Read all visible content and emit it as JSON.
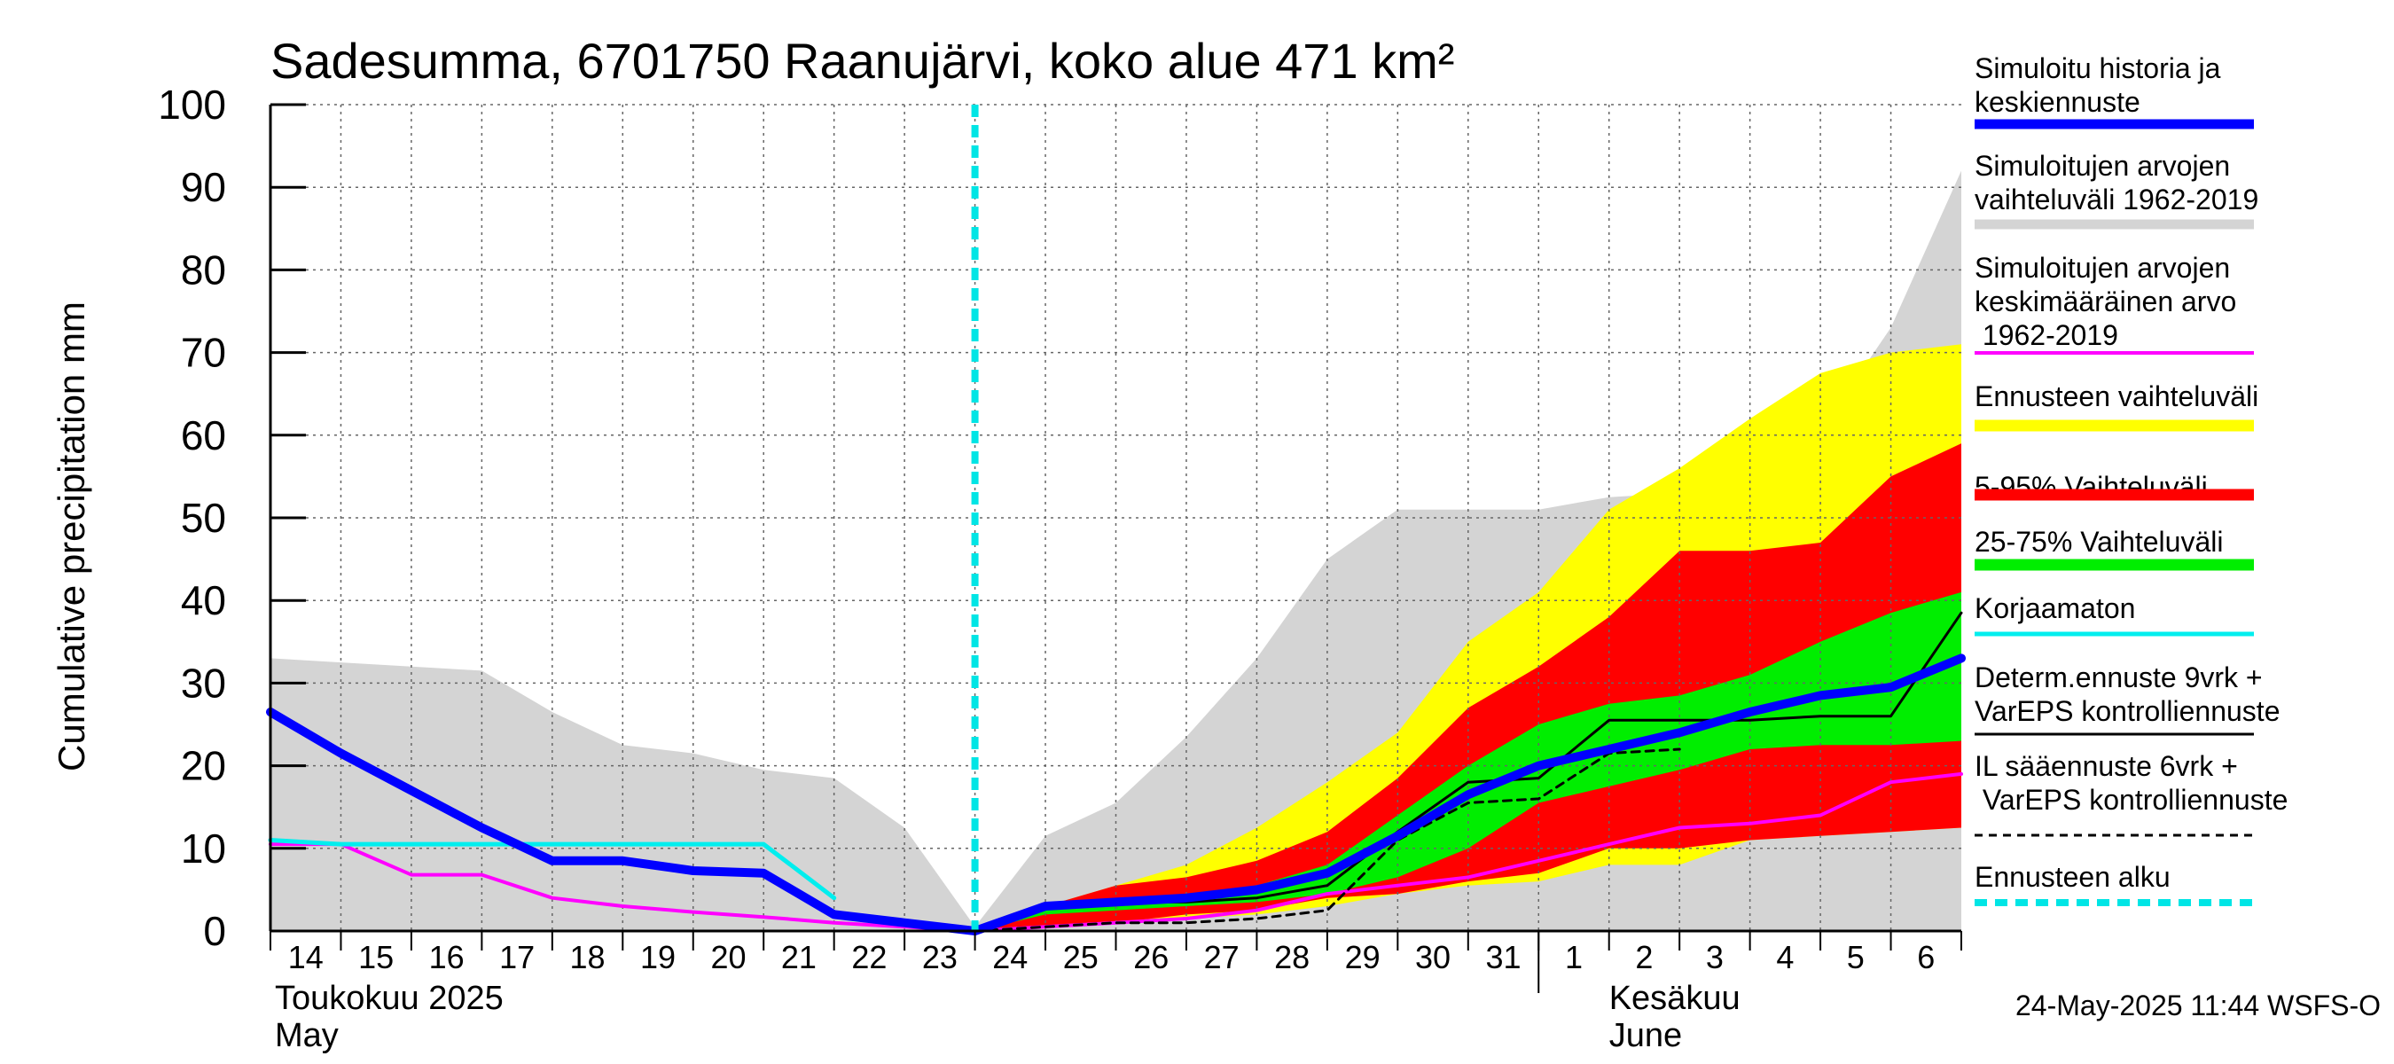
{
  "chart_data": {
    "type": "area",
    "title": "Sadesumma, 6701750 Raanujärvi, koko alue 471 km²",
    "ylabel": "Cumulative precipitation   mm",
    "ylim": [
      0,
      100
    ],
    "yticks": [
      0,
      10,
      20,
      30,
      40,
      50,
      60,
      70,
      80,
      90,
      100
    ],
    "xlim": [
      0,
      24
    ],
    "x_tick_labels": [
      "14",
      "15",
      "16",
      "17",
      "18",
      "19",
      "20",
      "21",
      "22",
      "23",
      "24",
      "25",
      "26",
      "27",
      "28",
      "29",
      "30",
      "31",
      "1",
      "2",
      "3",
      "4",
      "5",
      "6"
    ],
    "month_labels": [
      {
        "fi": "Toukokuu  2025",
        "en": "May"
      },
      {
        "fi": "Kesäkuu",
        "en": "June"
      }
    ],
    "month_boundary_day": 18,
    "forecast_start_day": 10,
    "grid": true,
    "timestamp": "24-May-2025 11:44 WSFS-O",
    "colors": {
      "hist_range": "#d4d4d4",
      "fc_range": "#ffff00",
      "p5_95": "#ff0000",
      "p25_75": "#00ee00",
      "sim": "#0000ff",
      "mean": "#ff00ff",
      "uncorrected": "#00eeee",
      "determ": "#000000",
      "il": "#000000",
      "start": "#00e5e5"
    },
    "legend": [
      {
        "label": "Simuloitu historia ja\nkeskiennuste",
        "style": "sim"
      },
      {
        "label": "Simuloitujen arvojen\nvaihteluväli 1962-2019",
        "style": "hist_range"
      },
      {
        "label": "Simuloitujen arvojen\nkeskimääräinen arvo\n   1962-2019",
        "style": "mean"
      },
      {
        "label": "Ennusteen vaihteluväli",
        "style": "fc_range"
      },
      {
        "label": "5-95% Vaihteluväli",
        "style": "p5_95"
      },
      {
        "label": "25-75% Vaihteluväli",
        "style": "p25_75"
      },
      {
        "label": "Korjaamaton",
        "style": "uncorrected"
      },
      {
        "label": "Determ.ennuste 9vrk +\nVarEPS kontrolliennuste",
        "style": "determ"
      },
      {
        "label": "IL sääennuste 6vrk  +\n  VarEPS kontrolliennuste",
        "style": "il"
      },
      {
        "label": "Ennusteen alku",
        "style": "start"
      }
    ],
    "series": [
      {
        "key": "hist_range",
        "type": "band",
        "x": [
          0,
          1,
          2,
          3,
          4,
          5,
          6,
          7,
          8,
          9,
          10,
          11,
          12,
          13,
          14,
          15,
          16,
          17,
          18,
          19,
          20,
          21,
          22,
          23,
          24
        ],
        "upper": [
          33,
          32.5,
          32,
          31.5,
          26.5,
          22.5,
          21.5,
          19.5,
          18.5,
          12.5,
          0.5,
          11.5,
          15.5,
          23.5,
          33,
          45,
          51,
          51,
          51,
          52.5,
          53,
          53.5,
          60.5,
          73,
          92
        ],
        "lower": [
          0,
          0,
          0,
          0,
          0,
          0,
          0,
          0,
          0,
          0,
          0,
          0,
          0,
          0,
          0,
          0,
          0,
          0,
          0,
          0,
          0,
          0,
          0,
          0,
          0
        ]
      },
      {
        "key": "fc_range",
        "type": "band",
        "x": [
          10,
          11,
          12,
          13,
          14,
          15,
          16,
          17,
          18,
          19,
          20,
          21,
          22,
          23,
          24
        ],
        "upper": [
          0,
          3,
          5.5,
          8,
          12.5,
          18,
          24,
          35,
          41,
          51,
          56,
          62,
          67.5,
          70,
          71
        ],
        "lower": [
          0,
          0.5,
          1,
          1.5,
          2,
          3,
          4.5,
          5.5,
          6,
          8,
          8,
          11,
          11.5,
          12,
          12.5
        ]
      },
      {
        "key": "p5_95",
        "type": "band",
        "x": [
          10,
          11,
          12,
          13,
          14,
          15,
          16,
          17,
          18,
          19,
          20,
          21,
          22,
          23,
          24
        ],
        "upper": [
          0,
          3,
          5.5,
          6.5,
          8.5,
          12,
          18.5,
          27,
          32,
          38,
          46,
          46,
          47,
          55,
          59
        ],
        "lower": [
          0,
          0.5,
          1,
          2,
          2.5,
          4,
          4.5,
          6,
          7,
          10,
          10,
          11,
          11.5,
          12,
          12.5
        ]
      },
      {
        "key": "p25_75",
        "type": "band",
        "x": [
          10,
          11,
          12,
          13,
          14,
          15,
          16,
          17,
          18,
          19,
          20,
          21,
          22,
          23,
          24
        ],
        "upper": [
          0,
          3,
          3.5,
          4.5,
          5.5,
          8,
          14,
          20,
          25,
          27.5,
          28.5,
          31,
          35,
          38.5,
          41
        ],
        "lower": [
          0,
          2,
          2.5,
          3,
          3.5,
          4.5,
          6.5,
          10,
          15.5,
          17.5,
          19.5,
          22,
          22.5,
          22.5,
          23
        ]
      },
      {
        "key": "mean",
        "type": "line",
        "width": 4,
        "x": [
          0,
          1,
          2,
          3,
          4,
          5,
          6,
          7,
          8,
          9,
          10,
          11,
          12,
          13,
          14,
          15,
          16,
          17,
          18,
          19,
          20,
          21,
          22,
          23,
          24
        ],
        "y": [
          10.5,
          10.5,
          6.8,
          6.8,
          4,
          3,
          2.3,
          1.7,
          1,
          0.5,
          0,
          0.5,
          1,
          1.5,
          2.5,
          4.5,
          5.5,
          6.5,
          8.5,
          10.5,
          12.5,
          13,
          14,
          18,
          19
        ]
      },
      {
        "key": "uncorrected",
        "type": "line",
        "width": 5,
        "x": [
          0,
          1,
          2,
          3,
          4,
          5,
          6,
          7,
          8
        ],
        "y": [
          11,
          10.5,
          10.5,
          10.5,
          10.5,
          10.5,
          10.5,
          10.5,
          4
        ]
      },
      {
        "key": "il",
        "type": "line",
        "width": 3,
        "dash": true,
        "x": [
          10,
          11,
          12,
          13,
          14,
          15,
          16,
          17,
          18,
          19,
          20
        ],
        "y": [
          0,
          0.5,
          1,
          1,
          1.5,
          2.5,
          11,
          15.5,
          16,
          21.5,
          22
        ]
      },
      {
        "key": "determ",
        "type": "line",
        "width": 3,
        "x": [
          10,
          11,
          12,
          13,
          14,
          15,
          16,
          17,
          18,
          19,
          20,
          21,
          22,
          23,
          24
        ],
        "y": [
          0,
          3,
          3.5,
          3.5,
          4,
          5.5,
          12,
          18,
          18.5,
          25.5,
          25.5,
          25.5,
          26,
          26,
          38.5
        ]
      },
      {
        "key": "sim",
        "type": "line",
        "width": 10,
        "x": [
          0,
          1,
          2,
          3,
          4,
          5,
          6,
          7,
          8,
          9,
          10,
          11,
          12,
          13,
          14,
          15,
          16,
          17,
          18,
          19,
          20,
          21,
          22,
          23,
          24
        ],
        "y": [
          26.5,
          21.5,
          17,
          12.5,
          8.5,
          8.5,
          7.3,
          7,
          2,
          1,
          0,
          3,
          3.5,
          4,
          5,
          7,
          11.5,
          16.5,
          20,
          22,
          24,
          26.5,
          28.5,
          29.5,
          33
        ]
      }
    ]
  }
}
